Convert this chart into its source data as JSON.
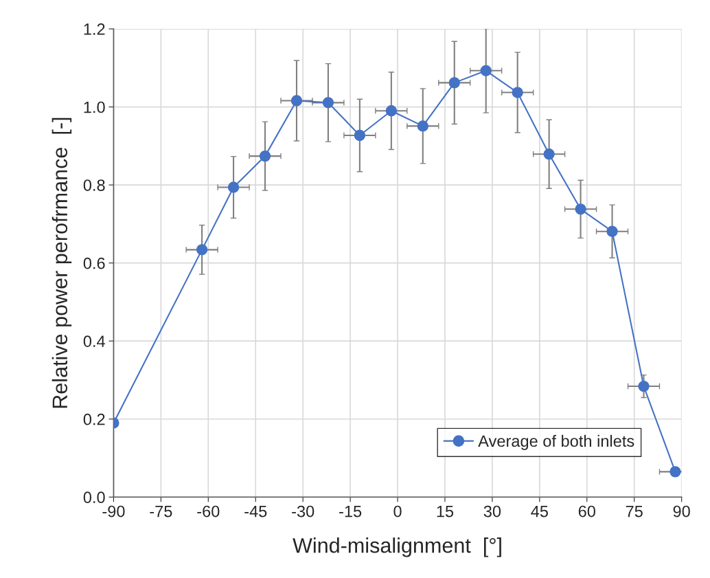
{
  "chart_data": {
    "type": "line",
    "xlabel": "Wind-misalignment  [°]",
    "ylabel": "Relative power perofrmance  [-]",
    "x": [
      -90,
      -62,
      -52,
      -42,
      -32,
      -22,
      -12,
      -2,
      8,
      18,
      28,
      38,
      48,
      58,
      68,
      78,
      88
    ],
    "series": [
      {
        "name": "Average of both inlets",
        "color": "#4472c4",
        "values": [
          0.19,
          0.634,
          0.794,
          0.874,
          1.016,
          1.011,
          0.927,
          0.99,
          0.951,
          1.062,
          1.093,
          1.037,
          0.879,
          0.738,
          0.681,
          0.284,
          0.065
        ],
        "errors": [
          null,
          0.063,
          0.079,
          0.088,
          0.103,
          0.1,
          0.093,
          0.099,
          0.096,
          0.106,
          0.108,
          0.103,
          0.088,
          0.074,
          0.068,
          0.029,
          null
        ],
        "xerrors": [
          null,
          5,
          5,
          5,
          5,
          5,
          5,
          5,
          5,
          5,
          5,
          5,
          5,
          5,
          5,
          5,
          5
        ]
      }
    ],
    "xlim": [
      -90,
      90
    ],
    "xticks": [
      -90,
      -75,
      -60,
      -45,
      -30,
      -15,
      0,
      15,
      30,
      45,
      60,
      75,
      90
    ],
    "ylim": [
      0,
      1.2
    ],
    "yticks": [
      {
        "value": 0,
        "label": "0.0"
      },
      0.2,
      0.4,
      0.6,
      0.8,
      {
        "value": 1.0,
        "label": "1.0"
      },
      1.2
    ],
    "grid": true,
    "legend": "bottom right",
    "marker": "circle",
    "line_style": "solid"
  }
}
